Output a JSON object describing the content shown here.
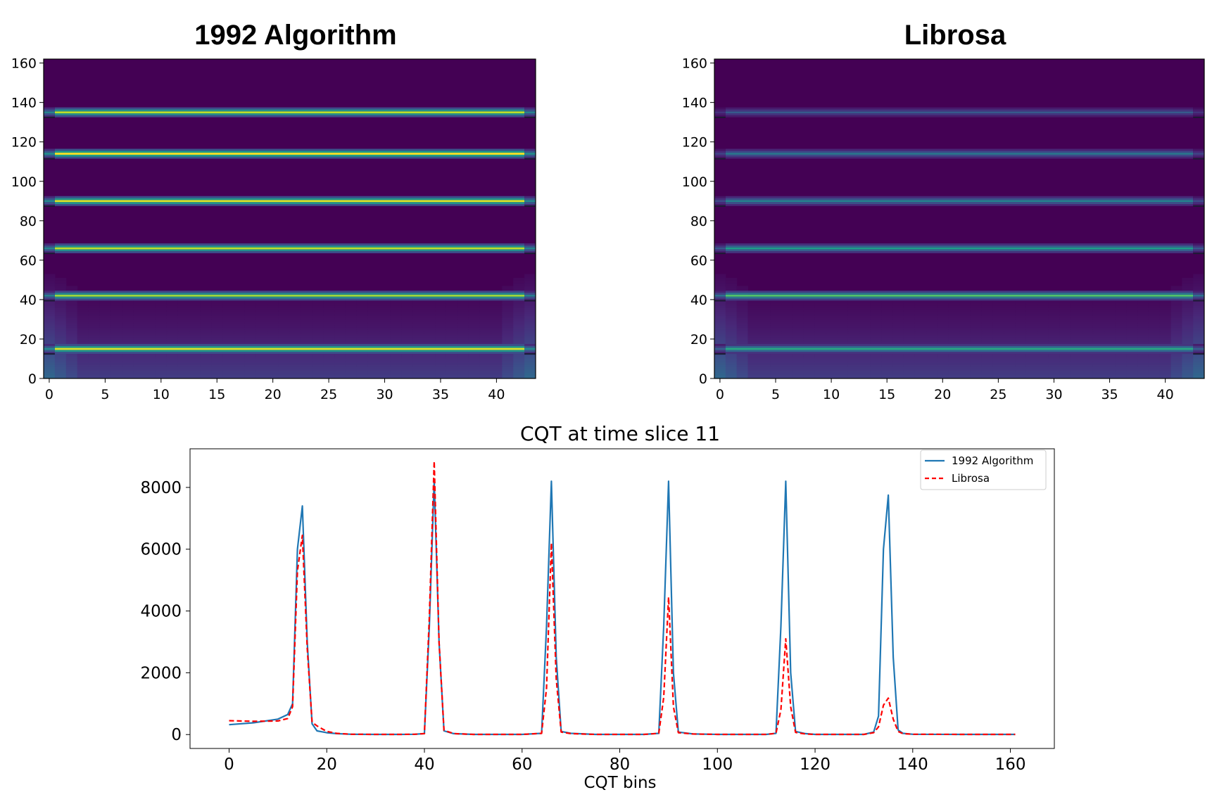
{
  "chart_data": [
    {
      "type": "heatmap",
      "title": "1992 Algorithm",
      "colormap": "viridis",
      "xlim": [
        -0.5,
        43.5
      ],
      "ylim": [
        0,
        162
      ],
      "xticks": [
        0,
        5,
        10,
        15,
        20,
        25,
        30,
        35,
        40
      ],
      "yticks": [
        0,
        20,
        40,
        60,
        80,
        100,
        120,
        140,
        160
      ],
      "time_frames": 44,
      "bright_bands": [
        {
          "bin": 15,
          "intensity": 0.95
        },
        {
          "bin": 42,
          "intensity": 0.85
        },
        {
          "bin": 66,
          "intensity": 0.9
        },
        {
          "bin": 90,
          "intensity": 0.95
        },
        {
          "bin": 114,
          "intensity": 1.0
        },
        {
          "bin": 135,
          "intensity": 0.9
        }
      ],
      "edge_bleed_frames": 3
    },
    {
      "type": "heatmap",
      "title": "Librosa",
      "colormap": "viridis",
      "xlim": [
        -0.5,
        43.5
      ],
      "ylim": [
        0,
        162
      ],
      "xticks": [
        0,
        5,
        10,
        15,
        20,
        25,
        30,
        35,
        40
      ],
      "yticks": [
        0,
        20,
        40,
        60,
        80,
        100,
        120,
        140,
        160
      ],
      "time_frames": 44,
      "bright_bands": [
        {
          "bin": 15,
          "intensity": 0.6
        },
        {
          "bin": 42,
          "intensity": 0.72
        },
        {
          "bin": 66,
          "intensity": 0.55
        },
        {
          "bin": 90,
          "intensity": 0.45
        },
        {
          "bin": 114,
          "intensity": 0.4
        },
        {
          "bin": 135,
          "intensity": 0.28
        }
      ],
      "edge_bleed_frames": 3
    },
    {
      "type": "line",
      "title": "CQT at time slice 11",
      "xlabel": "CQT bins",
      "ylabel": "",
      "xlim": [
        -8,
        169
      ],
      "ylim": [
        -450,
        9250
      ],
      "xticks": [
        0,
        20,
        40,
        60,
        80,
        100,
        120,
        140,
        160
      ],
      "yticks": [
        0,
        2000,
        4000,
        6000,
        8000
      ],
      "legend_position": "upper right",
      "series": [
        {
          "name": "1992 Algorithm",
          "color": "#1f77b4",
          "style": "solid",
          "x": [
            0,
            5,
            10,
            12,
            13,
            14,
            15,
            16,
            17,
            18,
            20,
            22,
            25,
            30,
            35,
            38,
            40,
            41,
            42,
            43,
            44,
            46,
            50,
            55,
            60,
            64,
            65,
            66,
            67,
            68,
            70,
            75,
            80,
            85,
            88,
            89,
            90,
            91,
            92,
            95,
            100,
            105,
            110,
            112,
            113,
            114,
            115,
            116,
            118,
            120,
            125,
            130,
            132,
            133,
            134,
            135,
            136,
            137,
            138,
            140,
            150,
            160,
            161
          ],
          "y": [
            320,
            380,
            500,
            650,
            1000,
            6000,
            7400,
            3000,
            350,
            120,
            60,
            30,
            10,
            5,
            5,
            10,
            30,
            3500,
            8250,
            3000,
            120,
            30,
            5,
            5,
            5,
            40,
            3500,
            8200,
            2500,
            100,
            40,
            5,
            5,
            5,
            40,
            3500,
            8200,
            2000,
            80,
            20,
            5,
            5,
            5,
            40,
            3500,
            8200,
            2000,
            100,
            30,
            5,
            5,
            5,
            80,
            600,
            6000,
            7750,
            2500,
            150,
            40,
            10,
            5,
            5,
            5
          ]
        },
        {
          "name": "Librosa",
          "color": "#ff0000",
          "style": "dashed",
          "x": [
            0,
            5,
            10,
            12,
            13,
            14,
            15,
            16,
            17,
            18,
            20,
            22,
            25,
            30,
            35,
            38,
            40,
            41,
            42,
            43,
            44,
            46,
            50,
            55,
            60,
            64,
            65,
            66,
            67,
            68,
            70,
            75,
            80,
            85,
            88,
            89,
            90,
            91,
            92,
            95,
            100,
            105,
            110,
            112,
            113,
            114,
            115,
            116,
            118,
            120,
            125,
            130,
            132,
            133,
            134,
            135,
            136,
            137,
            138,
            140,
            150,
            160,
            161
          ],
          "y": [
            450,
            430,
            440,
            520,
            900,
            5300,
            6450,
            2800,
            400,
            280,
            100,
            40,
            10,
            5,
            5,
            10,
            30,
            3800,
            8850,
            3000,
            140,
            30,
            5,
            5,
            5,
            40,
            1500,
            6200,
            1800,
            80,
            30,
            5,
            5,
            5,
            40,
            1200,
            4450,
            900,
            60,
            20,
            5,
            5,
            5,
            40,
            800,
            3100,
            900,
            70,
            20,
            5,
            5,
            5,
            60,
            250,
            950,
            1180,
            500,
            100,
            30,
            10,
            5,
            5,
            5
          ]
        }
      ]
    }
  ]
}
